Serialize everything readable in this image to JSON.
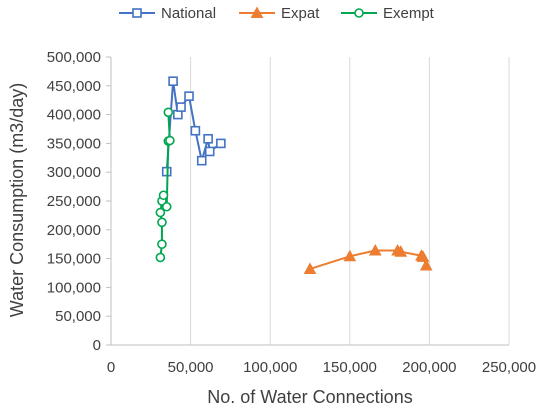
{
  "chart_data": {
    "type": "scatter",
    "xlabel": "No. of Water Connections",
    "ylabel": "Water Consumption (m3/day)",
    "xlim": [
      0,
      250000
    ],
    "ylim": [
      0,
      500000
    ],
    "x_ticks": [
      0,
      50000,
      100000,
      150000,
      200000,
      250000
    ],
    "y_ticks": [
      0,
      50000,
      100000,
      150000,
      200000,
      250000,
      300000,
      350000,
      400000,
      450000,
      500000
    ],
    "x_tick_labels": [
      "0",
      "50,000",
      "100,000",
      "150,000",
      "200,000",
      "250,000"
    ],
    "y_tick_labels": [
      "0",
      "50,000",
      "100,000",
      "150,000",
      "200,000",
      "250,000",
      "300,000",
      "350,000",
      "400,000",
      "450,000",
      "500,000"
    ],
    "grid": "vertical",
    "legend_position": "top",
    "series": [
      {
        "name": "National",
        "color": "#4472C4",
        "marker": "square",
        "connected": true,
        "points": [
          [
            35000,
            301000
          ],
          [
            39000,
            458000
          ],
          [
            42000,
            400000
          ],
          [
            44000,
            413000
          ],
          [
            49000,
            432000
          ],
          [
            53000,
            372000
          ],
          [
            57000,
            320000
          ],
          [
            61000,
            358000
          ],
          [
            62000,
            336000
          ],
          [
            69000,
            350000
          ]
        ]
      },
      {
        "name": "Expat",
        "color": "#ED7D31",
        "marker": "triangle",
        "connected": true,
        "points": [
          [
            125000,
            132000
          ],
          [
            150000,
            154000
          ],
          [
            166000,
            164000
          ],
          [
            180000,
            164000
          ],
          [
            182000,
            162000
          ],
          [
            195000,
            155000
          ],
          [
            196000,
            153000
          ],
          [
            198000,
            138000
          ]
        ]
      },
      {
        "name": "Exempt",
        "color": "#00A650",
        "marker": "circle",
        "connected": true,
        "points": [
          [
            31000,
            152000
          ],
          [
            32000,
            175000
          ],
          [
            32000,
            213000
          ],
          [
            31000,
            230000
          ],
          [
            32000,
            250000
          ],
          [
            33000,
            260000
          ],
          [
            35000,
            240000
          ],
          [
            36000,
            354000
          ],
          [
            37000,
            355000
          ],
          [
            36000,
            404000
          ]
        ]
      }
    ]
  }
}
